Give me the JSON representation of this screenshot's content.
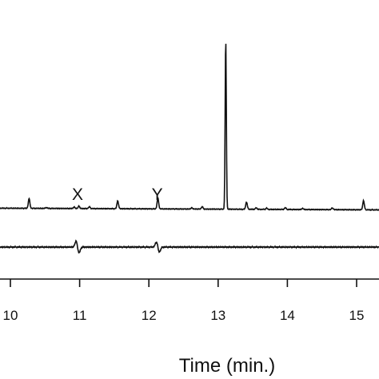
{
  "chart_data": {
    "type": "line",
    "xlabel": "Time (min.)",
    "xlim": [
      9.9,
      15.3
    ],
    "x_ticks": [
      10,
      11,
      12,
      13,
      14,
      15
    ],
    "x_tick_labels": [
      "10",
      "11",
      "12",
      "13",
      "14",
      "15"
    ],
    "grid": false,
    "annotations": [
      {
        "text": "X",
        "x": 10.97
      },
      {
        "text": "Y",
        "x": 12.12
      }
    ],
    "series": [
      {
        "baseline": 1.0,
        "peaks": [
          {
            "x": 10.27,
            "height": 1.6
          },
          {
            "x": 10.52,
            "height": 0.15
          },
          {
            "x": 10.92,
            "height": 0.25
          },
          {
            "x": 10.99,
            "height": 0.4
          },
          {
            "x": 11.14,
            "height": 0.3
          },
          {
            "x": 11.55,
            "height": 1.3
          },
          {
            "x": 12.13,
            "height": 1.8
          },
          {
            "x": 12.62,
            "height": 0.2
          },
          {
            "x": 12.77,
            "height": 0.4
          },
          {
            "x": 13.11,
            "height": 28.0
          },
          {
            "x": 13.41,
            "height": 1.2
          },
          {
            "x": 13.55,
            "height": 0.25
          },
          {
            "x": 13.7,
            "height": 0.2
          },
          {
            "x": 13.97,
            "height": 0.3
          },
          {
            "x": 14.22,
            "height": 0.2
          },
          {
            "x": 14.65,
            "height": 0.3
          },
          {
            "x": 15.1,
            "height": 1.5
          }
        ]
      },
      {
        "baseline": 0.0,
        "features": [
          {
            "x": 10.97,
            "type": "dispersive",
            "amplitude": 1.4
          },
          {
            "x": 12.13,
            "type": "dispersive",
            "amplitude": 1.2
          }
        ]
      }
    ]
  }
}
